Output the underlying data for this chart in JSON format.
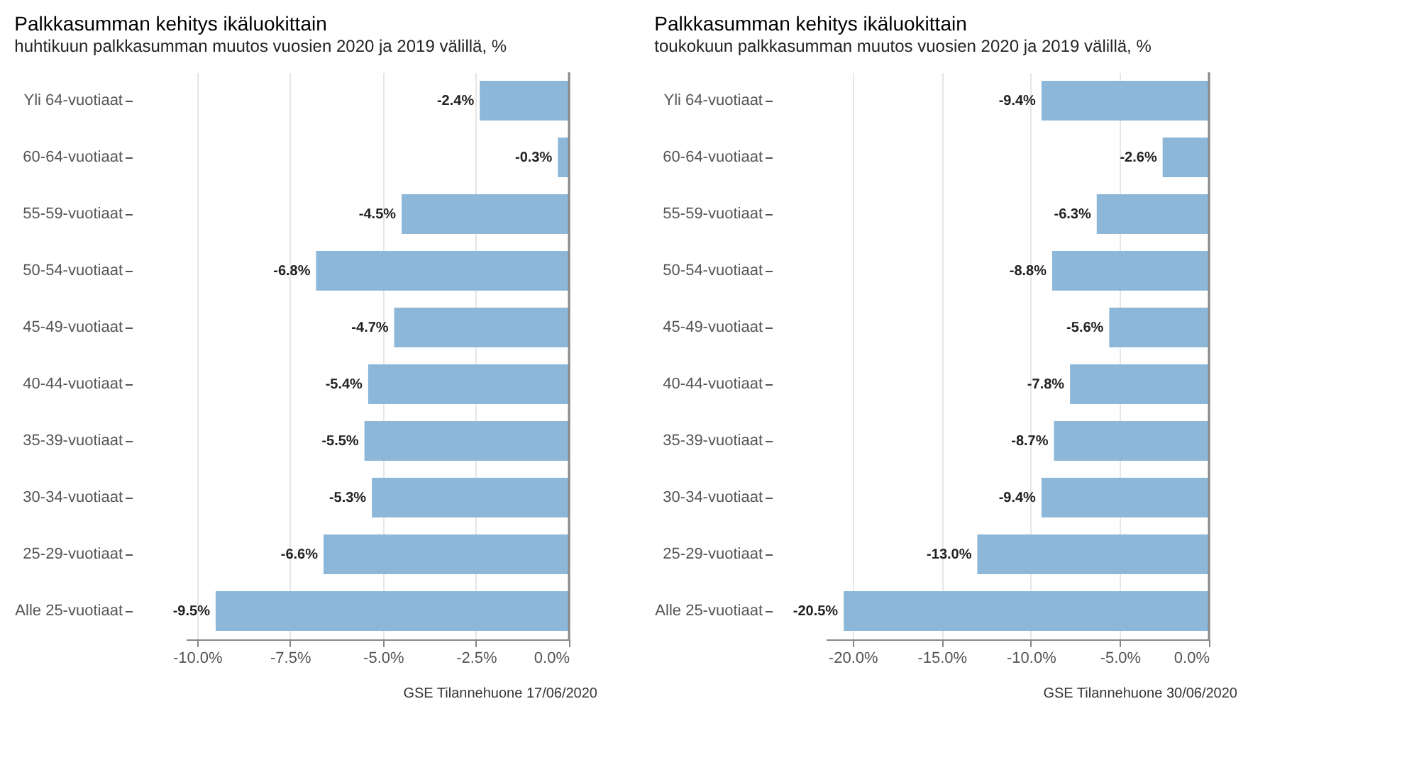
{
  "chart_data": [
    {
      "type": "bar",
      "orientation": "horizontal",
      "title": "Palkkasumman kehitys ikäluokittain",
      "subtitle": "huhtikuun palkkasumman muutos vuosien 2020 ja 2019 välillä, %",
      "categories": [
        "Yli 64-vuotiaat",
        "60-64-vuotiaat",
        "55-59-vuotiaat",
        "50-54-vuotiaat",
        "45-49-vuotiaat",
        "40-44-vuotiaat",
        "35-39-vuotiaat",
        "30-34-vuotiaat",
        "25-29-vuotiaat",
        "Alle 25-vuotiaat"
      ],
      "values": [
        -2.4,
        -0.3,
        -4.5,
        -6.8,
        -4.7,
        -5.4,
        -5.5,
        -5.3,
        -6.6,
        -9.5
      ],
      "value_labels": [
        "-2.4%",
        "-0.3%",
        "-4.5%",
        "-6.8%",
        "-4.7%",
        "-5.4%",
        "-5.5%",
        "-5.3%",
        "-6.6%",
        "-9.5%"
      ],
      "color": "#8cb7d8",
      "xlim": [
        -10.3,
        0
      ],
      "xticks": [
        {
          "value": -10,
          "label": "-10.0%"
        },
        {
          "value": -7.5,
          "label": "-7.5%"
        },
        {
          "value": -5,
          "label": "-5.0%"
        },
        {
          "value": -2.5,
          "label": "-2.5%"
        },
        {
          "value": 0,
          "label": "0.0%"
        }
      ],
      "grid": "x",
      "ref_lines": [
        {
          "axis": "x",
          "value": 0,
          "color": "#888888"
        }
      ],
      "annotations": [
        "GSE Tilannehuone 17/06/2020"
      ]
    },
    {
      "type": "bar",
      "orientation": "horizontal",
      "title": "Palkkasumman kehitys ikäluokittain",
      "subtitle": "toukokuun palkkasumman muutos vuosien 2020 ja 2019 välillä, %",
      "categories": [
        "Yli 64-vuotiaat",
        "60-64-vuotiaat",
        "55-59-vuotiaat",
        "50-54-vuotiaat",
        "45-49-vuotiaat",
        "40-44-vuotiaat",
        "35-39-vuotiaat",
        "30-34-vuotiaat",
        "25-29-vuotiaat",
        "Alle 25-vuotiaat"
      ],
      "values": [
        -9.4,
        -2.6,
        -6.3,
        -8.8,
        -5.6,
        -7.8,
        -8.7,
        -9.4,
        -13.0,
        -20.5
      ],
      "value_labels": [
        "-9.4%",
        "-2.6%",
        "-6.3%",
        "-8.8%",
        "-5.6%",
        "-7.8%",
        "-8.7%",
        "-9.4%",
        "-13.0%",
        "-20.5%"
      ],
      "color": "#8cb7d8",
      "xlim": [
        -21.5,
        0
      ],
      "xticks": [
        {
          "value": -20,
          "label": "-20.0%"
        },
        {
          "value": -15,
          "label": "-15.0%"
        },
        {
          "value": -10,
          "label": "-10.0%"
        },
        {
          "value": -5,
          "label": "-5.0%"
        },
        {
          "value": 0,
          "label": "0.0%"
        }
      ],
      "grid": "x",
      "ref_lines": [
        {
          "axis": "x",
          "value": 0,
          "color": "#888888"
        }
      ],
      "annotations": [
        "GSE Tilannehuone 30/06/2020"
      ]
    }
  ]
}
